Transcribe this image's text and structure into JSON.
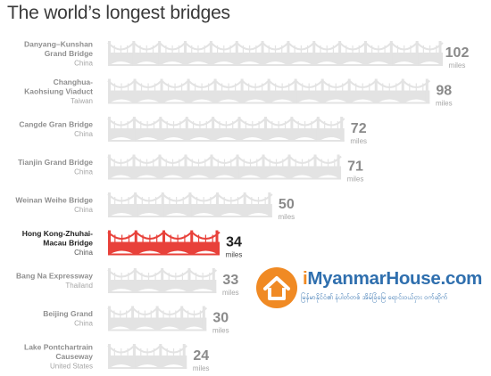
{
  "chart_data": {
    "type": "bar",
    "title": "The world’s longest bridges",
    "unit": "miles",
    "highlight_index": 5,
    "colors": {
      "bar": "#e3e3e3",
      "highlight": "#e8413a"
    },
    "bars": [
      {
        "name": [
          "Danyang–Kunshan",
          "Grand Bridge"
        ],
        "country": "China",
        "value": 102
      },
      {
        "name": [
          "Changhua-",
          "Kaohsiung Viaduct"
        ],
        "country": "Taiwan",
        "value": 98
      },
      {
        "name": [
          "Cangde Gran Bridge"
        ],
        "country": "China",
        "value": 72
      },
      {
        "name": [
          "Tianjin Grand Bridge"
        ],
        "country": "China",
        "value": 71
      },
      {
        "name": [
          "Weinan Weihe Bridge"
        ],
        "country": "China",
        "value": 50
      },
      {
        "name": [
          "Hong Kong-Zhuhai-",
          "Macau Bridge"
        ],
        "country": "China",
        "value": 34
      },
      {
        "name": [
          "Bang Na Expressway"
        ],
        "country": "Thailand",
        "value": 33
      },
      {
        "name": [
          "Beijing Grand"
        ],
        "country": "China",
        "value": 30
      },
      {
        "name": [
          "Lake Pontchartrain",
          "Causeway"
        ],
        "country": "United States",
        "value": 24
      }
    ]
  },
  "watermark": {
    "brand_i": "i",
    "brand_rest": "MyanmarHouse.com",
    "tagline": "မြန်မာနိုင်ငံ၏ နံပါတ်တစ် အိမ်ခြံမြေ ရောင်းဝယ်ငှား ဝက်ဆိုက်",
    "icon": "house-icon",
    "accent": "#f08a24",
    "brand_color": "#2f6fae"
  }
}
